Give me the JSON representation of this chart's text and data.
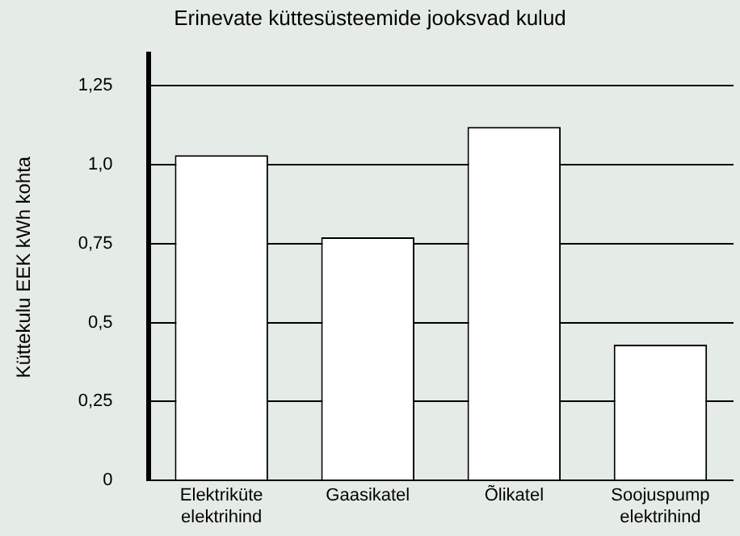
{
  "chart_data": {
    "type": "bar",
    "title": "Erinevate küttesüsteemide jooksvad kulud",
    "ylabel": "Küttekulu EEK kWh kohta",
    "categories": [
      "Elektriküte elektrihind",
      "Gaasikatel",
      "Õlikatel",
      "Soojuspump elektrihind"
    ],
    "values": [
      1.03,
      0.77,
      1.12,
      0.43
    ],
    "color": "#ffffff",
    "ylim": [
      0,
      1.35
    ],
    "yticks": [
      0,
      {
        "value": 0.25,
        "label": "0,25"
      },
      {
        "value": 0.5,
        "label": "0,5"
      },
      {
        "value": 0.75,
        "label": "0,75"
      },
      {
        "value": 1,
        "label": "1,0"
      },
      {
        "value": 1.25,
        "label": "1,25"
      }
    ],
    "grid": "y",
    "legend": false
  }
}
